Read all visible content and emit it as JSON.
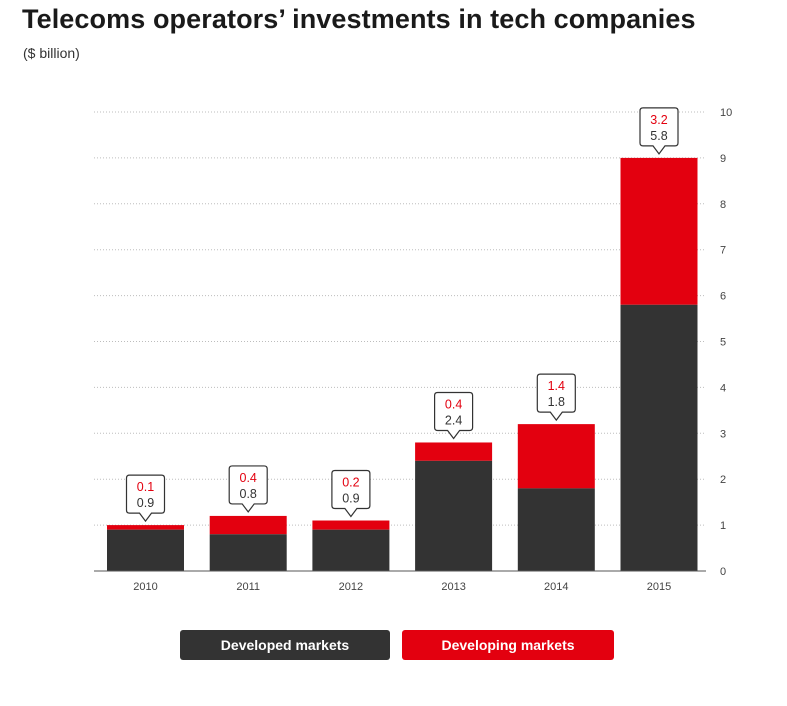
{
  "title": "Telecoms operators’ investments in tech companies",
  "subtitle": "($ billion)",
  "legend": {
    "developed": "Developed markets",
    "developing": "Developing markets"
  },
  "colors": {
    "developed": "#333333",
    "developing": "#e3000f",
    "grid": "#bdbdbd",
    "axis_text": "#444444"
  },
  "chart_data": {
    "type": "bar",
    "stacked": true,
    "categories": [
      "2010",
      "2011",
      "2012",
      "2013",
      "2014",
      "2015"
    ],
    "series": [
      {
        "name": "Developed markets",
        "values": [
          0.9,
          0.8,
          0.9,
          2.4,
          1.8,
          5.8
        ]
      },
      {
        "name": "Developing markets",
        "values": [
          0.1,
          0.4,
          0.2,
          0.4,
          1.4,
          3.2
        ]
      }
    ],
    "data_labels": {
      "developed": [
        "0.9",
        "0.8",
        "0.9",
        "2.4",
        "1.8",
        "5.8"
      ],
      "developing": [
        "0.1",
        "0.4",
        "0.2",
        "0.4",
        "1.4",
        "3.2"
      ]
    },
    "ylim": [
      0,
      10
    ],
    "yticks": [
      "0",
      "1",
      "2",
      "3",
      "4",
      "5",
      "6",
      "7",
      "8",
      "9",
      "10"
    ],
    "yaxis_position": "right",
    "grid": true,
    "legend_position": "bottom",
    "xlabel": "",
    "ylabel": ""
  }
}
